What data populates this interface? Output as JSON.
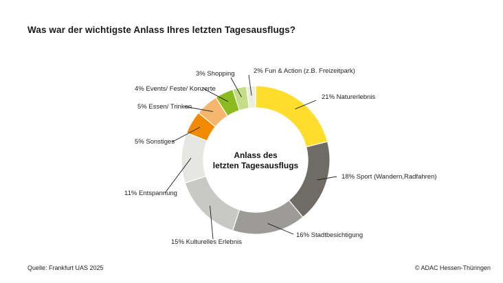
{
  "title": "Was war der wichtigste Anlass Ihres letzten Tagesausflugs?",
  "center_label": [
    "Anlass des",
    "letzten Tagesausflugs"
  ],
  "source": "Quelle: Frankfurt UAS 2025",
  "copyright": "© ADAC Hessen-Thüringen",
  "chart_data": {
    "type": "pie",
    "donut": true,
    "title": "Was war der wichtigste Anlass Ihres letzten Tagesausflugs?",
    "slices": [
      {
        "label": "Naturerlebnis",
        "value": 21,
        "display": "21%",
        "color": "#fedd2d"
      },
      {
        "label": "Sport (Wandern,Radfahren)",
        "value": 18,
        "display": "18%",
        "color": "#6f6c66"
      },
      {
        "label": "Stadtbesichtigung",
        "value": 16,
        "display": "16%",
        "color": "#9c9b97"
      },
      {
        "label": "Kulturelles Erlebnis",
        "value": 15,
        "display": "15%",
        "color": "#c8c8c5"
      },
      {
        "label": "Entspannung",
        "value": 11,
        "display": "11%",
        "color": "#e6e6e3"
      },
      {
        "label": "Sonstiges",
        "value": 5,
        "display": "5%",
        "color": "#f28a00"
      },
      {
        "label": "Essen/ Trinken",
        "value": 5,
        "display": "5%",
        "color": "#f7b66e"
      },
      {
        "label": "Events/ Feste/ Konzerte",
        "value": 4,
        "display": "4%",
        "color": "#8cbb1f"
      },
      {
        "label": "Shopping",
        "value": 3,
        "display": "3%",
        "color": "#c5dd86"
      },
      {
        "label": "Fun & Action (z.B. Freizeitpark)",
        "value": 2,
        "display": "2%",
        "color": "#ecefe0"
      }
    ]
  }
}
